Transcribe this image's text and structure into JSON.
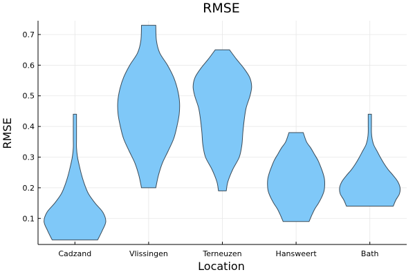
{
  "chart_data": {
    "type": "violin",
    "title": "RMSE",
    "xlabel": "Location",
    "ylabel": "RMSE",
    "categories": [
      "Cadzand",
      "Vlissingen",
      "Terneuzen",
      "Hansweert",
      "Bath"
    ],
    "ylim": [
      0.015,
      0.745
    ],
    "yticks": [
      0.1,
      0.2,
      0.3,
      0.4,
      0.5,
      0.6,
      0.7
    ],
    "ytick_labels": [
      "0.1",
      "0.2",
      "0.3",
      "0.4",
      "0.5",
      "0.6",
      "0.7"
    ],
    "grid": true,
    "legend": "none",
    "colors": {
      "fill": "#7fc8f8",
      "stroke": "#3a4a57",
      "axis": "#000000",
      "grid": "#e6e6e6"
    },
    "series": [
      {
        "category": "Cadzand",
        "min": 0.03,
        "max": 0.44,
        "profile": [
          [
            0.03,
            0.7
          ],
          [
            0.06,
            0.84
          ],
          [
            0.09,
            0.95
          ],
          [
            0.12,
            0.86
          ],
          [
            0.15,
            0.62
          ],
          [
            0.18,
            0.42
          ],
          [
            0.21,
            0.3
          ],
          [
            0.24,
            0.21
          ],
          [
            0.27,
            0.14
          ],
          [
            0.3,
            0.08
          ],
          [
            0.33,
            0.05
          ],
          [
            0.36,
            0.05
          ],
          [
            0.4,
            0.05
          ],
          [
            0.44,
            0.05
          ]
        ]
      },
      {
        "category": "Vlissingen",
        "min": 0.2,
        "max": 0.73,
        "profile": [
          [
            0.2,
            0.22
          ],
          [
            0.24,
            0.3
          ],
          [
            0.28,
            0.42
          ],
          [
            0.32,
            0.6
          ],
          [
            0.36,
            0.77
          ],
          [
            0.4,
            0.87
          ],
          [
            0.44,
            0.94
          ],
          [
            0.48,
            0.95
          ],
          [
            0.52,
            0.89
          ],
          [
            0.56,
            0.77
          ],
          [
            0.6,
            0.58
          ],
          [
            0.64,
            0.34
          ],
          [
            0.68,
            0.24
          ],
          [
            0.73,
            0.22
          ]
        ]
      },
      {
        "category": "Terneuzen",
        "min": 0.19,
        "max": 0.65,
        "profile": [
          [
            0.19,
            0.12
          ],
          [
            0.22,
            0.17
          ],
          [
            0.26,
            0.32
          ],
          [
            0.3,
            0.52
          ],
          [
            0.34,
            0.6
          ],
          [
            0.38,
            0.63
          ],
          [
            0.42,
            0.67
          ],
          [
            0.46,
            0.73
          ],
          [
            0.5,
            0.85
          ],
          [
            0.53,
            0.9
          ],
          [
            0.56,
            0.84
          ],
          [
            0.59,
            0.66
          ],
          [
            0.62,
            0.43
          ],
          [
            0.65,
            0.22
          ]
        ]
      },
      {
        "category": "Hansweert",
        "min": 0.09,
        "max": 0.38,
        "profile": [
          [
            0.09,
            0.4
          ],
          [
            0.11,
            0.48
          ],
          [
            0.13,
            0.57
          ],
          [
            0.15,
            0.69
          ],
          [
            0.17,
            0.79
          ],
          [
            0.19,
            0.86
          ],
          [
            0.21,
            0.88
          ],
          [
            0.23,
            0.87
          ],
          [
            0.25,
            0.82
          ],
          [
            0.27,
            0.75
          ],
          [
            0.29,
            0.67
          ],
          [
            0.31,
            0.56
          ],
          [
            0.33,
            0.45
          ],
          [
            0.35,
            0.32
          ],
          [
            0.38,
            0.22
          ]
        ]
      },
      {
        "category": "Bath",
        "min": 0.14,
        "max": 0.44,
        "profile": [
          [
            0.14,
            0.72
          ],
          [
            0.16,
            0.8
          ],
          [
            0.18,
            0.91
          ],
          [
            0.2,
            0.93
          ],
          [
            0.22,
            0.86
          ],
          [
            0.24,
            0.72
          ],
          [
            0.26,
            0.56
          ],
          [
            0.28,
            0.43
          ],
          [
            0.3,
            0.32
          ],
          [
            0.32,
            0.22
          ],
          [
            0.34,
            0.12
          ],
          [
            0.36,
            0.07
          ],
          [
            0.38,
            0.05
          ],
          [
            0.41,
            0.05
          ],
          [
            0.44,
            0.05
          ]
        ]
      }
    ]
  }
}
